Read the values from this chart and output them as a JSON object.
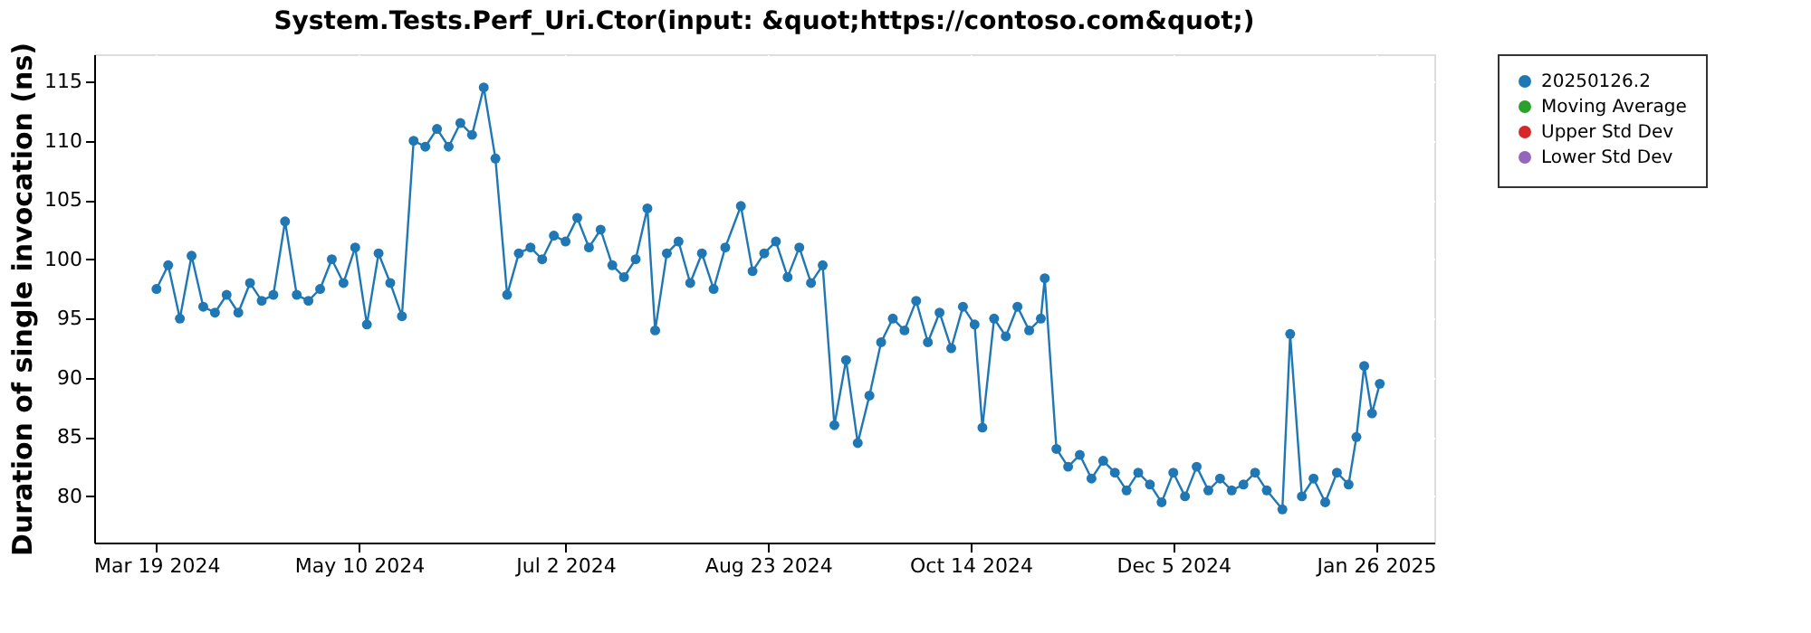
{
  "chart_data": {
    "type": "line",
    "title": "System.Tests.Perf_Uri.Ctor(input: &quot;https://contoso.com&quot;)",
    "ylabel": "Duration of single invocation (ns)",
    "x": [
      "2024-03-19",
      "2024-03-22",
      "2024-03-25",
      "2024-03-28",
      "2024-03-31",
      "2024-04-03",
      "2024-04-06",
      "2024-04-09",
      "2024-04-12",
      "2024-04-15",
      "2024-04-18",
      "2024-04-21",
      "2024-04-24",
      "2024-04-27",
      "2024-04-30",
      "2024-05-03",
      "2024-05-06",
      "2024-05-09",
      "2024-05-12",
      "2024-05-15",
      "2024-05-18",
      "2024-05-21",
      "2024-05-24",
      "2024-05-27",
      "2024-05-30",
      "2024-06-02",
      "2024-06-05",
      "2024-06-08",
      "2024-06-11",
      "2024-06-14",
      "2024-06-17",
      "2024-06-20",
      "2024-06-23",
      "2024-06-26",
      "2024-06-29",
      "2024-07-02",
      "2024-07-05",
      "2024-07-08",
      "2024-07-11",
      "2024-07-14",
      "2024-07-17",
      "2024-07-20",
      "2024-07-23",
      "2024-07-25",
      "2024-07-28",
      "2024-07-31",
      "2024-08-03",
      "2024-08-06",
      "2024-08-09",
      "2024-08-12",
      "2024-08-16",
      "2024-08-19",
      "2024-08-22",
      "2024-08-25",
      "2024-08-28",
      "2024-08-31",
      "2024-09-03",
      "2024-09-06",
      "2024-09-09",
      "2024-09-12",
      "2024-09-15",
      "2024-09-18",
      "2024-09-21",
      "2024-09-24",
      "2024-09-27",
      "2024-09-30",
      "2024-10-03",
      "2024-10-06",
      "2024-10-09",
      "2024-10-12",
      "2024-10-15",
      "2024-10-17",
      "2024-10-20",
      "2024-10-23",
      "2024-10-26",
      "2024-10-29",
      "2024-11-01",
      "2024-11-02",
      "2024-11-05",
      "2024-11-08",
      "2024-11-11",
      "2024-11-14",
      "2024-11-17",
      "2024-11-20",
      "2024-11-23",
      "2024-11-26",
      "2024-11-29",
      "2024-12-02",
      "2024-12-05",
      "2024-12-08",
      "2024-12-11",
      "2024-12-14",
      "2024-12-17",
      "2024-12-20",
      "2024-12-23",
      "2024-12-26",
      "2024-12-29",
      "2025-01-02",
      "2025-01-04",
      "2025-01-07",
      "2025-01-10",
      "2025-01-13",
      "2025-01-16",
      "2025-01-19",
      "2025-01-21",
      "2025-01-23",
      "2025-01-25",
      "2025-01-27"
    ],
    "series": [
      {
        "name": "20250126.2",
        "color": "#1f77b4",
        "values": [
          97.5,
          99.5,
          95.0,
          100.3,
          96.0,
          95.5,
          97.0,
          95.5,
          98.0,
          96.5,
          97.0,
          103.2,
          97.0,
          96.5,
          97.5,
          100.0,
          98.0,
          101.0,
          94.5,
          100.5,
          98.0,
          95.2,
          110.0,
          109.5,
          111.0,
          109.5,
          111.5,
          110.5,
          114.5,
          108.5,
          97.0,
          100.5,
          101.0,
          100.0,
          102.0,
          101.5,
          103.5,
          101.0,
          102.5,
          99.5,
          98.5,
          100.0,
          104.3,
          94.0,
          100.5,
          101.5,
          98.0,
          100.5,
          97.5,
          101.0,
          104.5,
          99.0,
          100.5,
          101.5,
          98.5,
          101.0,
          98.0,
          99.5,
          86.0,
          91.5,
          84.5,
          88.5,
          93.0,
          95.0,
          94.0,
          96.5,
          93.0,
          95.5,
          92.5,
          96.0,
          94.5,
          85.8,
          95.0,
          93.5,
          96.0,
          94.0,
          95.0,
          98.4,
          84.0,
          82.5,
          83.5,
          81.5,
          83.0,
          82.0,
          80.5,
          82.0,
          81.0,
          79.5,
          82.0,
          80.0,
          82.5,
          80.5,
          81.5,
          80.5,
          81.0,
          82.0,
          80.5,
          78.9,
          93.7,
          80.0,
          81.5,
          79.5,
          82.0,
          81.0,
          85.0,
          91.0,
          87.0,
          89.5
        ]
      },
      {
        "name": "Moving Average",
        "color": "#2ca02c",
        "values": [
          null,
          null,
          null,
          null,
          null,
          null,
          null,
          null,
          null,
          null,
          null,
          null,
          null,
          null,
          null,
          null,
          null,
          null,
          null,
          null,
          null,
          null,
          null,
          null,
          null,
          null,
          null,
          null,
          null,
          null,
          null,
          null,
          null,
          null,
          null,
          null,
          null,
          null,
          null,
          null,
          null,
          null,
          null,
          null,
          null,
          null,
          null,
          null,
          null,
          null,
          null,
          null,
          null,
          null,
          null,
          null,
          null,
          null,
          null,
          null,
          null,
          null,
          null,
          null,
          null,
          null,
          null,
          null,
          null,
          null,
          null,
          null,
          null,
          null,
          null,
          null,
          null,
          null,
          null,
          null,
          null,
          null,
          null,
          null,
          null,
          null,
          null,
          null,
          null,
          null,
          null,
          null,
          null,
          null,
          null,
          null,
          null,
          null,
          null,
          null,
          null,
          null,
          null,
          null,
          null,
          null,
          null,
          null
        ]
      },
      {
        "name": "Upper Std Dev",
        "color": "#d62728",
        "values": [
          null,
          null,
          null,
          null,
          null,
          null,
          null,
          null,
          null,
          null,
          null,
          null,
          null,
          null,
          null,
          null,
          null,
          null,
          null,
          null,
          null,
          null,
          null,
          null,
          null,
          null,
          null,
          null,
          null,
          null,
          null,
          null,
          null,
          null,
          null,
          null,
          null,
          null,
          null,
          null,
          null,
          null,
          null,
          null,
          null,
          null,
          null,
          null,
          null,
          null,
          null,
          null,
          null,
          null,
          null,
          null,
          null,
          null,
          null,
          null,
          null,
          null,
          null,
          null,
          null,
          null,
          null,
          null,
          null,
          null,
          null,
          null,
          null,
          null,
          null,
          null,
          null,
          null,
          null,
          null,
          null,
          null,
          null,
          null,
          null,
          null,
          null,
          null,
          null,
          null,
          null,
          null,
          null,
          null,
          null,
          null,
          null,
          null,
          null,
          null,
          null,
          null,
          null,
          null,
          null,
          null,
          null,
          null
        ]
      },
      {
        "name": "Lower Std Dev",
        "color": "#9467bd",
        "values": [
          null,
          null,
          null,
          null,
          null,
          null,
          null,
          null,
          null,
          null,
          null,
          null,
          null,
          null,
          null,
          null,
          null,
          null,
          null,
          null,
          null,
          null,
          null,
          null,
          null,
          null,
          null,
          null,
          null,
          null,
          null,
          null,
          null,
          null,
          null,
          null,
          null,
          null,
          null,
          null,
          null,
          null,
          null,
          null,
          null,
          null,
          null,
          null,
          null,
          null,
          null,
          null,
          null,
          null,
          null,
          null,
          null,
          null,
          null,
          null,
          null,
          null,
          null,
          null,
          null,
          null,
          null,
          null,
          null,
          null,
          null,
          null,
          null,
          null,
          null,
          null,
          null,
          null,
          null,
          null,
          null,
          null,
          null,
          null,
          null,
          null,
          null,
          null,
          null,
          null,
          null,
          null,
          null,
          null,
          null,
          null,
          null,
          null,
          null,
          null,
          null,
          null,
          null,
          null,
          null,
          null,
          null,
          null
        ]
      }
    ],
    "xlim": [
      "2024-03-03",
      "2025-02-10"
    ],
    "xticks": [
      {
        "value": "2024-03-19",
        "label": "Mar 19 2024"
      },
      {
        "value": "2024-05-10",
        "label": "May 10 2024"
      },
      {
        "value": "2024-07-02",
        "label": "Jul 2 2024"
      },
      {
        "value": "2024-08-23",
        "label": "Aug 23 2024"
      },
      {
        "value": "2024-10-14",
        "label": "Oct 14 2024"
      },
      {
        "value": "2024-12-05",
        "label": "Dec 5 2024"
      },
      {
        "value": "2025-01-26",
        "label": "Jan 26 2025"
      }
    ],
    "ylim": [
      76.1,
      117.3
    ],
    "yticks": [
      80,
      85,
      90,
      95,
      100,
      105,
      110,
      115
    ],
    "grid": true,
    "legend": "right",
    "marker": "circle",
    "line_style": "solid"
  }
}
